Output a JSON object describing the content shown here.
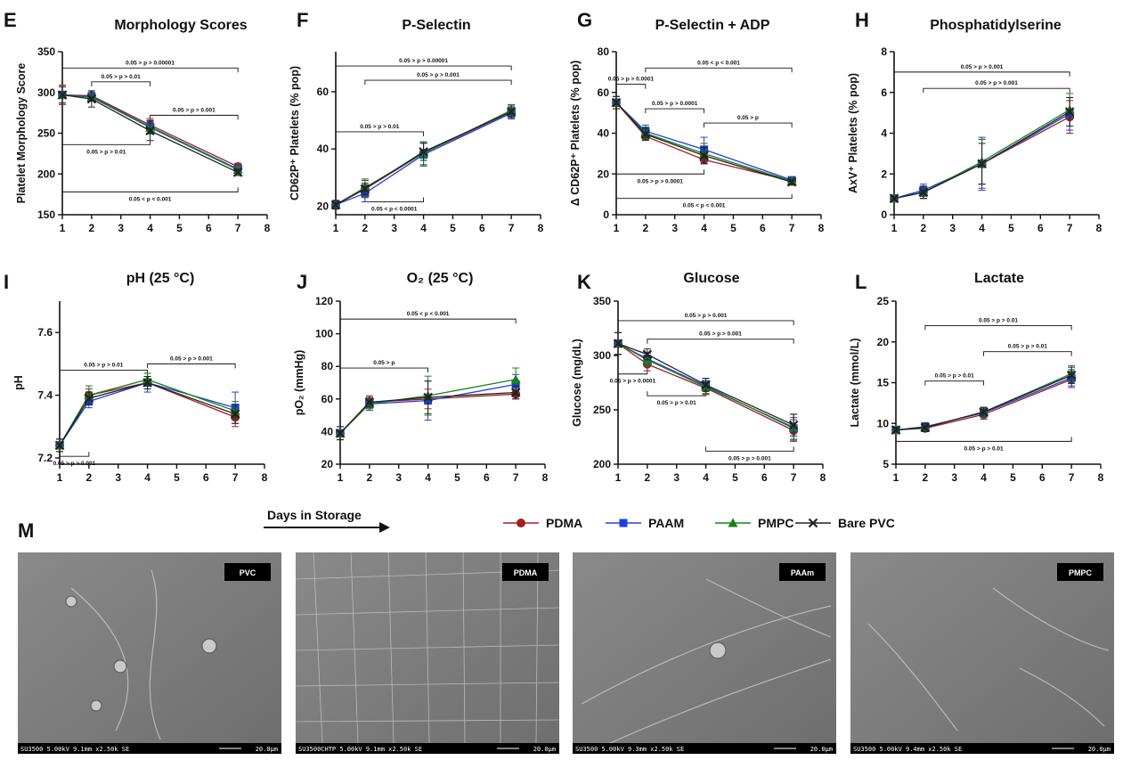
{
  "chart_data": [
    {
      "letter": "E",
      "type": "line",
      "title": "Morphology Scores",
      "ylabel": "Platelet Morphology  Score",
      "ylim": [
        150,
        350
      ],
      "yticks": [
        150,
        200,
        250,
        300,
        350
      ],
      "xlim": [
        1,
        8
      ],
      "xticks": [
        1,
        2,
        3,
        4,
        5,
        6,
        7,
        8
      ],
      "x": [
        1,
        2,
        4,
        7
      ],
      "series": [
        {
          "name": "PDMA",
          "values": [
            297,
            296,
            260,
            209
          ],
          "err": [
            12,
            6,
            8,
            4
          ]
        },
        {
          "name": "PAAM",
          "values": [
            297,
            295,
            258,
            206
          ],
          "err": [
            10,
            5,
            8,
            4
          ]
        },
        {
          "name": "PMPC",
          "values": [
            297,
            294,
            257,
            205
          ],
          "err": [
            10,
            5,
            8,
            4
          ]
        },
        {
          "name": "Bare PVC",
          "values": [
            297,
            292,
            253,
            202
          ],
          "err": [
            10,
            10,
            12,
            4
          ]
        }
      ],
      "brackets": [
        {
          "x1": 1,
          "x2": 7,
          "yv": 330,
          "dir": "down",
          "label": "0.05 > p > 0.00001"
        },
        {
          "x1": 2,
          "x2": 4,
          "yv": 313,
          "dir": "down",
          "label": "0.05 > p > 0.01"
        },
        {
          "x1": 4,
          "x2": 7,
          "yv": 272,
          "dir": "down",
          "label": "0.05 > p > 0.001"
        },
        {
          "x1": 1,
          "x2": 4,
          "yv": 236,
          "dir": "up",
          "label": "0.05 > p > 0.01"
        },
        {
          "x1": 1,
          "x2": 7,
          "yv": 178,
          "dir": "up",
          "label": "0.05 < p < 0.001"
        }
      ]
    },
    {
      "letter": "F",
      "type": "line",
      "title": "P-Selectin",
      "ylabel": "CD62P⁺ Platelets (% pop)",
      "ylim": [
        17,
        74
      ],
      "yticks": [
        20,
        40,
        60
      ],
      "xlim": [
        1,
        8
      ],
      "xticks": [
        1,
        2,
        3,
        4,
        5,
        6,
        7,
        8
      ],
      "x": [
        1,
        2,
        4,
        7
      ],
      "series": [
        {
          "name": "PDMA",
          "values": [
            20.5,
            26,
            38.5,
            53
          ],
          "err": [
            1.5,
            3,
            4,
            2.5
          ]
        },
        {
          "name": "PAAM",
          "values": [
            20.5,
            24.5,
            38,
            52.5
          ],
          "err": [
            1.5,
            3,
            4,
            2
          ]
        },
        {
          "name": "PMPC",
          "values": [
            20.5,
            26.5,
            38.5,
            53.5
          ],
          "err": [
            1.5,
            3,
            4,
            2
          ]
        },
        {
          "name": "Bare PVC",
          "values": [
            20.5,
            26,
            39,
            53
          ],
          "err": [
            1.5,
            2,
            3,
            2
          ]
        }
      ],
      "brackets": [
        {
          "x1": 1,
          "x2": 7,
          "yv": 69,
          "dir": "down",
          "label": "0.05 > p > 0.00001"
        },
        {
          "x1": 2,
          "x2": 7,
          "yv": 64,
          "dir": "down",
          "label": "0.05 > p > 0.001"
        },
        {
          "x1": 1,
          "x2": 4,
          "yv": 46,
          "dir": "down",
          "label": "0.05 > p > 0.01"
        },
        {
          "x1": 2,
          "x2": 4,
          "yv": 21.5,
          "dir": "up",
          "label": "0.05 < p < 0.0001"
        }
      ]
    },
    {
      "letter": "G",
      "type": "line",
      "title": "P-Selectin + ADP",
      "ylabel": "Δ CD62P⁺ Platelets (% pop)",
      "ylim": [
        0,
        80
      ],
      "yticks": [
        0,
        20,
        40,
        60,
        80
      ],
      "xlim": [
        1,
        8
      ],
      "xticks": [
        1,
        2,
        3,
        4,
        5,
        6,
        7,
        8
      ],
      "x": [
        1,
        2,
        4,
        7
      ],
      "series": [
        {
          "name": "PDMA",
          "values": [
            55,
            38.5,
            27,
            16.5
          ],
          "err": [
            3,
            2,
            2,
            1.5
          ]
        },
        {
          "name": "PAAM",
          "values": [
            55,
            41,
            32,
            17
          ],
          "err": [
            3,
            3,
            6,
            1.5
          ]
        },
        {
          "name": "PMPC",
          "values": [
            55,
            40,
            30,
            16.5
          ],
          "err": [
            3,
            3,
            5,
            1.5
          ]
        },
        {
          "name": "Bare PVC",
          "values": [
            55,
            39.5,
            29,
            16
          ],
          "err": [
            3,
            3,
            4,
            1.5
          ]
        }
      ],
      "brackets": [
        {
          "x1": 2,
          "x2": 7,
          "yv": 72,
          "dir": "down",
          "label": "0.05 < p < 0.001"
        },
        {
          "x1": 1,
          "x2": 2,
          "yv": 64,
          "dir": "down",
          "label": "0.05 > p > 0.0001"
        },
        {
          "x1": 2,
          "x2": 4,
          "yv": 52,
          "dir": "down",
          "label": "0.05 > p > 0.0001"
        },
        {
          "x1": 4,
          "x2": 7,
          "yv": 45,
          "dir": "down",
          "label": "0.05 > p"
        },
        {
          "x1": 1,
          "x2": 4,
          "yv": 20,
          "dir": "up",
          "label": "0.05 > p > 0.0001"
        },
        {
          "x1": 1,
          "x2": 7,
          "yv": 8,
          "dir": "up",
          "label": "0.05 < p < 0.001"
        }
      ]
    },
    {
      "letter": "H",
      "type": "line",
      "title": "Phosphatidylserine",
      "ylabel": "AxV⁺ Platelets (% pop)",
      "ylim": [
        0,
        8
      ],
      "yticks": [
        0,
        2,
        4,
        6,
        8
      ],
      "xlim": [
        1,
        8
      ],
      "xticks": [
        1,
        2,
        3,
        4,
        5,
        6,
        7,
        8
      ],
      "x": [
        1,
        2,
        4,
        7
      ],
      "series": [
        {
          "name": "PDMA",
          "values": [
            0.8,
            1.1,
            2.5,
            4.8
          ],
          "err": [
            0.1,
            0.3,
            1.2,
            0.8
          ]
        },
        {
          "name": "PAAM",
          "values": [
            0.8,
            1.2,
            2.5,
            4.95
          ],
          "err": [
            0.1,
            0.3,
            1.3,
            0.8
          ]
        },
        {
          "name": "PMPC",
          "values": [
            0.8,
            1.1,
            2.6,
            5.15
          ],
          "err": [
            0.1,
            0.3,
            1.1,
            0.8
          ]
        },
        {
          "name": "Bare PVC",
          "values": [
            0.8,
            1.1,
            2.5,
            5.05
          ],
          "err": [
            0.1,
            0.3,
            1.0,
            0.7
          ]
        }
      ],
      "brackets": [
        {
          "x1": 1,
          "x2": 7,
          "yv": 7.0,
          "dir": "down",
          "label": "0.05 > p > 0.001"
        },
        {
          "x1": 2,
          "x2": 7,
          "yv": 6.2,
          "dir": "down",
          "label": "0.05 > p > 0.001"
        }
      ]
    },
    {
      "letter": "I",
      "type": "line",
      "title": "pH (25 °C)",
      "ylabel": "pH",
      "ylim": [
        7.18,
        7.7
      ],
      "yticks": [
        7.2,
        7.4,
        7.6
      ],
      "xlim": [
        1,
        8
      ],
      "xticks": [
        1,
        2,
        3,
        4,
        5,
        6,
        7,
        8
      ],
      "x": [
        1,
        2,
        4,
        7
      ],
      "series": [
        {
          "name": "PDMA",
          "values": [
            7.24,
            7.4,
            7.44,
            7.33
          ],
          "err": [
            0.02,
            0.02,
            0.02,
            0.03
          ]
        },
        {
          "name": "PAAM",
          "values": [
            7.24,
            7.38,
            7.44,
            7.36
          ],
          "err": [
            0.02,
            0.02,
            0.03,
            0.05
          ]
        },
        {
          "name": "PMPC",
          "values": [
            7.24,
            7.4,
            7.45,
            7.35
          ],
          "err": [
            0.02,
            0.03,
            0.02,
            0.03
          ]
        },
        {
          "name": "Bare PVC",
          "values": [
            7.24,
            7.39,
            7.44,
            7.34
          ],
          "err": [
            0.02,
            0.02,
            0.02,
            0.03
          ]
        }
      ],
      "brackets": [
        {
          "x1": 1,
          "x2": 4,
          "yv": 7.48,
          "dir": "down",
          "label": "0.05 > p > 0.01"
        },
        {
          "x1": 4,
          "x2": 7,
          "yv": 7.5,
          "dir": "down",
          "label": "0.05 > p > 0.001"
        },
        {
          "x1": 1,
          "x2": 2,
          "yv": 7.205,
          "dir": "up",
          "label": "0.05 > p > 0.001"
        }
      ]
    },
    {
      "letter": "J",
      "type": "line",
      "title": "O₂ (25 °C)",
      "ylabel": "pO₂ (mmHg)",
      "ylim": [
        20,
        120
      ],
      "yticks": [
        20,
        40,
        60,
        80,
        100,
        120
      ],
      "xlim": [
        1,
        8
      ],
      "xticks": [
        1,
        2,
        3,
        4,
        5,
        6,
        7,
        8
      ],
      "x": [
        1,
        2,
        4,
        7
      ],
      "series": [
        {
          "name": "PDMA",
          "values": [
            39,
            58,
            60,
            63
          ],
          "err": [
            4,
            4,
            6,
            3
          ]
        },
        {
          "name": "PAAM",
          "values": [
            39,
            57,
            59,
            69
          ],
          "err": [
            4,
            4,
            12,
            6
          ]
        },
        {
          "name": "PMPC",
          "values": [
            39,
            57,
            62,
            72
          ],
          "err": [
            4,
            3,
            12,
            7
          ]
        },
        {
          "name": "Bare PVC",
          "values": [
            39,
            58,
            61,
            64
          ],
          "err": [
            4,
            3,
            10,
            4
          ]
        }
      ],
      "brackets": [
        {
          "x1": 1,
          "x2": 7,
          "yv": 109,
          "dir": "down",
          "label": "0.05 < p < 0.001"
        },
        {
          "x1": 1,
          "x2": 4,
          "yv": 79,
          "dir": "down",
          "label": "0.05 > p"
        }
      ]
    },
    {
      "letter": "K",
      "type": "line",
      "title": "Glucose",
      "ylabel": "Glucose (mg/dL)",
      "ylim": [
        200,
        350
      ],
      "yticks": [
        200,
        250,
        300,
        350
      ],
      "xlim": [
        1,
        8
      ],
      "xticks": [
        1,
        2,
        3,
        4,
        5,
        6,
        7,
        8
      ],
      "x": [
        1,
        2,
        4,
        7
      ],
      "series": [
        {
          "name": "PDMA",
          "values": [
            311,
            292,
            270,
            231
          ],
          "err": [
            10,
            6,
            6,
            10
          ]
        },
        {
          "name": "PAAM",
          "values": [
            311,
            297,
            272,
            233
          ],
          "err": [
            10,
            6,
            7,
            10
          ]
        },
        {
          "name": "PMPC",
          "values": [
            311,
            296,
            271,
            234
          ],
          "err": [
            10,
            6,
            6,
            12
          ]
        },
        {
          "name": "Bare PVC",
          "values": [
            311,
            301,
            273,
            236
          ],
          "err": [
            10,
            5,
            6,
            10
          ]
        }
      ],
      "brackets": [
        {
          "x1": 1,
          "x2": 7,
          "yv": 332,
          "dir": "down",
          "label": "0.05 > p > 0.001"
        },
        {
          "x1": 2,
          "x2": 7,
          "yv": 315,
          "dir": "down",
          "label": "0.05 > p > 0.001"
        },
        {
          "x1": 1,
          "x2": 2,
          "yv": 283,
          "dir": "up",
          "label": "0.05 > p > 0.0001"
        },
        {
          "x1": 2,
          "x2": 4,
          "yv": 263,
          "dir": "up",
          "label": "0.05 > p > 0.01"
        },
        {
          "x1": 4,
          "x2": 7,
          "yv": 212,
          "dir": "up",
          "label": "0.05 > p > 0.001"
        }
      ]
    },
    {
      "letter": "L",
      "type": "line",
      "title": "Lactate",
      "ylabel": "Lactate (mmol/L)",
      "ylim": [
        5,
        25
      ],
      "yticks": [
        5,
        10,
        15,
        20,
        25
      ],
      "xlim": [
        1,
        8
      ],
      "xticks": [
        1,
        2,
        3,
        4,
        5,
        6,
        7,
        8
      ],
      "x": [
        1,
        2,
        4,
        7
      ],
      "series": [
        {
          "name": "PDMA",
          "values": [
            9.2,
            9.4,
            11.1,
            15.4
          ],
          "err": [
            0.3,
            0.4,
            0.6,
            1
          ]
        },
        {
          "name": "PAAM",
          "values": [
            9.2,
            9.6,
            11.3,
            15.6
          ],
          "err": [
            0.3,
            0.5,
            0.6,
            1
          ]
        },
        {
          "name": "PMPC",
          "values": [
            9.2,
            9.5,
            11.4,
            16.1
          ],
          "err": [
            0.3,
            0.5,
            0.6,
            1
          ]
        },
        {
          "name": "Bare PVC",
          "values": [
            9.2,
            9.5,
            11.4,
            15.9
          ],
          "err": [
            0.3,
            0.5,
            0.5,
            1
          ]
        }
      ],
      "brackets": [
        {
          "x1": 2,
          "x2": 7,
          "yv": 22,
          "dir": "down",
          "label": "0.05 > p > 0.01"
        },
        {
          "x1": 4,
          "x2": 7,
          "yv": 18.8,
          "dir": "down",
          "label": "0.05 > p > 0.01"
        },
        {
          "x1": 2,
          "x2": 4,
          "yv": 15.2,
          "dir": "down",
          "label": "0.05 > p > 0.01"
        },
        {
          "x1": 1,
          "x2": 7,
          "yv": 7.8,
          "dir": "up",
          "label": "0.05 > p > 0.01"
        }
      ]
    }
  ],
  "series_styles": [
    {
      "name": "PDMA",
      "color": "#a51e1e",
      "marker": "circle"
    },
    {
      "name": "PAAM",
      "color": "#1f3fe0",
      "marker": "square"
    },
    {
      "name": "PMPC",
      "color": "#17821a",
      "marker": "triangle"
    },
    {
      "name": "Bare PVC",
      "color": "#222222",
      "marker": "x"
    }
  ],
  "xaxis_caption": "Days in Storage",
  "panel_m_letter": "M",
  "sem_images": [
    {
      "label": "PVC",
      "footer_left": "SU3500 5.00kV 9.1mm x2.50k SE",
      "footer_right": "20.0μm"
    },
    {
      "label": "PDMA",
      "footer_left": "SU3500CHTP 5.00kV 9.1mm x2.50k SE",
      "footer_right": "20.0μm"
    },
    {
      "label": "PAAm",
      "footer_left": "SU3500 5.00kV 9.3mm x2.50k SE",
      "footer_right": "20.0μm"
    },
    {
      "label": "PMPC",
      "footer_left": "SU3500 5.00kV 9.4mm x2.50k SE",
      "footer_right": "20.0μm"
    }
  ]
}
